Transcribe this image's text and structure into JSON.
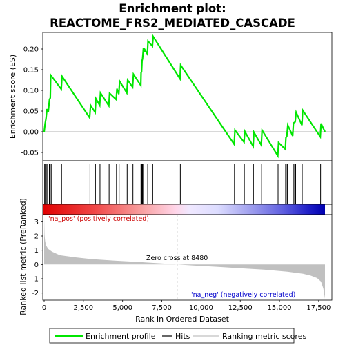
{
  "title_line1": "Enrichment plot:",
  "title_line2": "REACTOME_FRS2_MEDIATED_CASCADE",
  "chart_data": {
    "type": "line",
    "n_genes": 17900,
    "es_panel": {
      "ylabel": "Enrichment score (ES)",
      "ylim": [
        -0.07,
        0.24
      ],
      "yticks": [
        -0.05,
        0.0,
        0.05,
        0.1,
        0.15,
        0.2
      ],
      "ytick_labels": [
        "-0.05",
        "0.00",
        "0.05",
        "0.10",
        "0.15",
        "0.20"
      ],
      "series": {
        "name": "Enrichment profile",
        "color": "#00e600",
        "x": [
          0,
          60,
          120,
          180,
          260,
          340,
          390,
          420,
          1090,
          1140,
          2900,
          2960,
          3250,
          3300,
          3540,
          3590,
          4120,
          4170,
          4590,
          4640,
          4760,
          4810,
          5270,
          5320,
          5640,
          5690,
          6160,
          6180,
          6210,
          6240,
          6270,
          6330,
          6390,
          6420,
          6580,
          6620,
          6900,
          6950,
          8660,
          8700,
          12110,
          12160,
          12740,
          12790,
          13320,
          13370,
          13840,
          13890,
          14890,
          14940,
          15370,
          15410,
          15470,
          15530,
          15840,
          15890,
          16000,
          16060,
          16430,
          16480,
          17600,
          17650,
          17900
        ],
        "y": [
          0.0,
          0.02,
          0.032,
          0.055,
          0.047,
          0.078,
          0.082,
          0.137,
          0.103,
          0.134,
          0.034,
          0.064,
          0.047,
          0.08,
          0.064,
          0.094,
          0.063,
          0.093,
          0.078,
          0.104,
          0.091,
          0.122,
          0.094,
          0.125,
          0.108,
          0.139,
          0.112,
          0.143,
          0.145,
          0.172,
          0.176,
          0.202,
          0.192,
          0.198,
          0.188,
          0.219,
          0.207,
          0.23,
          0.128,
          0.161,
          -0.03,
          0.004,
          -0.025,
          0.001,
          -0.035,
          -0.001,
          -0.032,
          0.004,
          -0.058,
          -0.026,
          -0.042,
          -0.014,
          -0.011,
          0.016,
          -0.01,
          0.021,
          0.024,
          0.047,
          0.016,
          0.052,
          -0.012,
          0.02,
          0.0
        ]
      }
    },
    "hits": [
      30,
      80,
      170,
      230,
      330,
      380,
      450,
      1110,
      2920,
      3270,
      3560,
      4140,
      4610,
      4780,
      5290,
      5660,
      6170,
      6200,
      6230,
      6260,
      6290,
      6350,
      6600,
      6920,
      8680,
      12130,
      12760,
      13340,
      13860,
      14910,
      15390,
      15430,
      15500,
      15860,
      15920,
      16030,
      16450,
      17620
    ],
    "rank_panel": {
      "ylabel": "Ranked list metric (PreRanked)",
      "xlabel": "Rank in Ordered Dataset",
      "ylim": [
        -2.5,
        3.5
      ],
      "yticks": [
        -2,
        -1,
        0,
        1,
        2,
        3
      ],
      "ytick_labels": [
        "-2",
        "-1",
        "0",
        "1",
        "2",
        "3"
      ],
      "xticks": [
        0,
        2500,
        5000,
        7500,
        10000,
        12500,
        15000,
        17500
      ],
      "xtick_labels": [
        "0",
        "2,500",
        "5,000",
        "7,500",
        "10,000",
        "12,500",
        "15,000",
        "17,500"
      ],
      "zero_cross": 8480,
      "zero_cross_label": "Zero cross at 8480",
      "pos_label": "'na_pos' (positively correlated)",
      "neg_label": "'na_neg' (negatively correlated)",
      "metric_curve": {
        "name": "Ranking metric scores",
        "color": "#c0c0c0",
        "x": [
          0,
          20,
          60,
          120,
          250,
          500,
          1000,
          2000,
          3000,
          4500,
          6000,
          7500,
          8480,
          9500,
          11000,
          12500,
          14000,
          15500,
          16500,
          17000,
          17400,
          17650,
          17800,
          17900
        ],
        "y": [
          3.3,
          2.1,
          1.65,
          1.35,
          1.1,
          0.9,
          0.65,
          0.5,
          0.38,
          0.27,
          0.18,
          0.08,
          0.0,
          -0.07,
          -0.16,
          -0.26,
          -0.36,
          -0.5,
          -0.65,
          -0.78,
          -0.95,
          -1.2,
          -1.7,
          -2.4
        ]
      }
    },
    "legend": [
      "Enrichment profile",
      "Hits",
      "Ranking metric scores"
    ]
  }
}
